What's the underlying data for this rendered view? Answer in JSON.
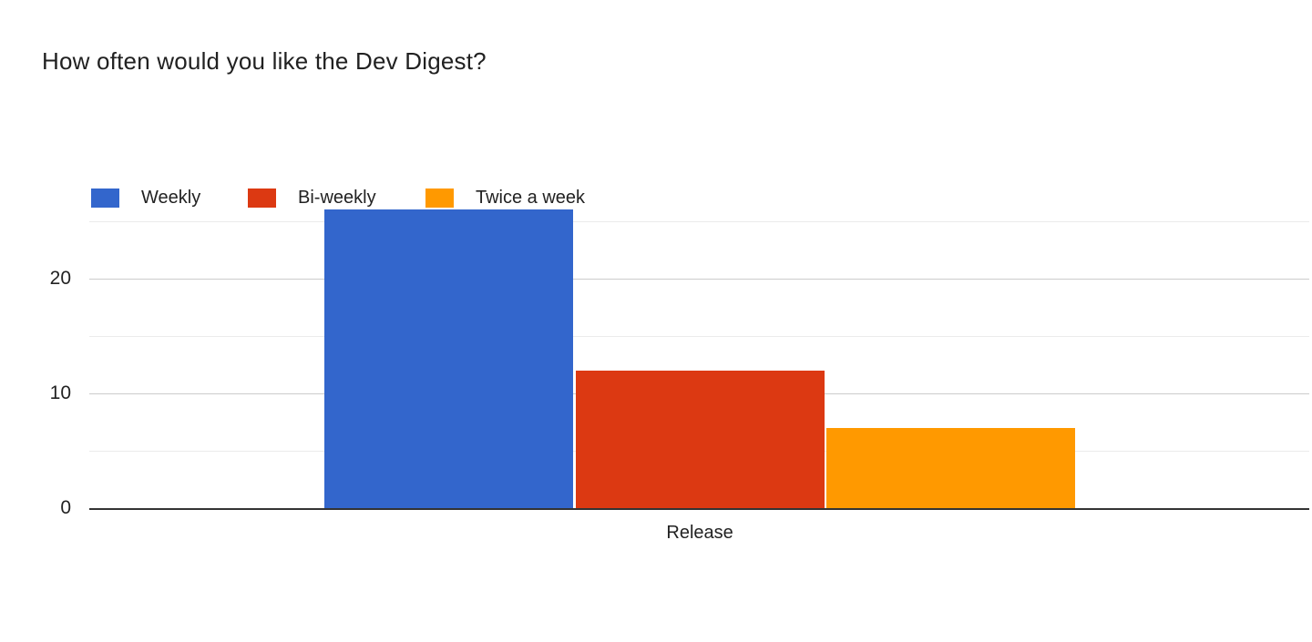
{
  "title": "How often would you like the Dev Digest?",
  "chart_data": {
    "type": "bar",
    "title": "How often would you like the Dev Digest?",
    "categories": [
      "Release"
    ],
    "series": [
      {
        "name": "Weekly",
        "values": [
          26
        ],
        "color": "#3366cc"
      },
      {
        "name": "Bi-weekly",
        "values": [
          12
        ],
        "color": "#dc3912"
      },
      {
        "name": "Twice a week",
        "values": [
          7
        ],
        "color": "#ff9900"
      }
    ],
    "xlabel": "",
    "ylabel": "",
    "y_ticks": [
      0,
      10,
      20
    ],
    "y_minor_step": 5,
    "ylim": [
      0,
      26.2
    ],
    "grid": true,
    "legend_position": "top",
    "colors": {
      "axis_line": "#333333",
      "major_gridline": "#cccccc",
      "minor_gridline": "#ebebeb",
      "tick_label": "#222222",
      "title": "#212121"
    }
  }
}
